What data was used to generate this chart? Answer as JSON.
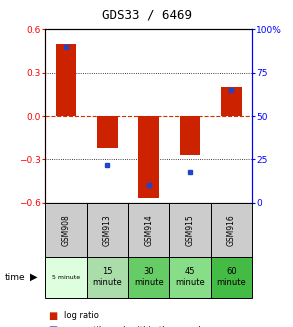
{
  "title": "GDS33 / 6469",
  "samples": [
    "GSM908",
    "GSM913",
    "GSM914",
    "GSM915",
    "GSM916"
  ],
  "time_labels_line1": [
    "5 minute",
    "15",
    "30",
    "45",
    "60"
  ],
  "time_labels_line2": [
    "",
    "minute",
    "minute",
    "minute",
    "minute"
  ],
  "time_colors": [
    "#ddffdd",
    "#aaddaa",
    "#66cc66",
    "#88dd88",
    "#44bb44"
  ],
  "log_ratios": [
    0.5,
    -0.22,
    -0.57,
    -0.27,
    0.2
  ],
  "percentile_ranks": [
    90,
    22,
    10,
    18,
    65
  ],
  "ylim": [
    -0.6,
    0.6
  ],
  "y2lim": [
    0,
    100
  ],
  "y_ticks": [
    -0.6,
    -0.3,
    0.0,
    0.3,
    0.6
  ],
  "y2_ticks": [
    0,
    25,
    50,
    75,
    100
  ],
  "red_color": "#cc2200",
  "blue_color": "#2244cc",
  "bar_width": 0.5,
  "grid_color": "#444444",
  "zero_line_color": "#cc3300",
  "gsm_bg": "#cccccc"
}
